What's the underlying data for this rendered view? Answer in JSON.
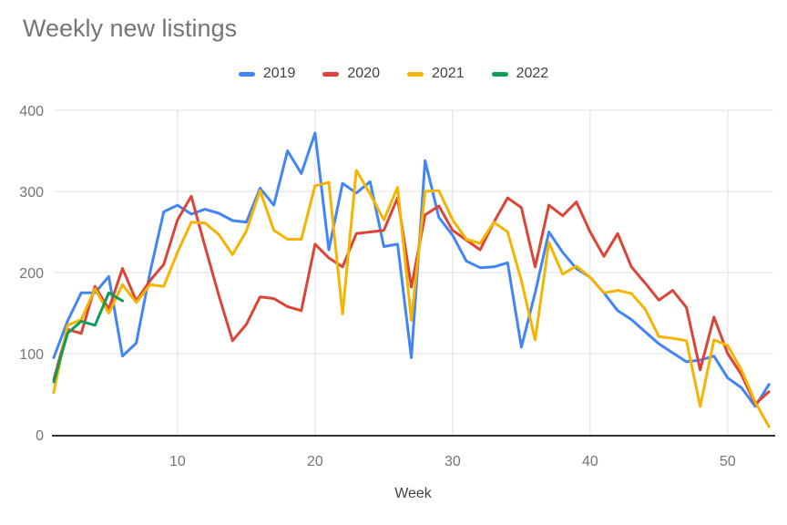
{
  "title": "Weekly new listings",
  "axis": {
    "x_label": "Week",
    "x_ticks": [
      10,
      20,
      30,
      40,
      50
    ],
    "y_ticks": [
      0,
      100,
      200,
      300,
      400
    ]
  },
  "colors": {
    "title_text": "#757575",
    "tick_text": "#757575",
    "axis_label_text": "#424242",
    "legend_text": "#424242",
    "gridline": "#e0e0e0",
    "baseline": "#333333",
    "background": "#ffffff"
  },
  "chart_data": {
    "type": "line",
    "title": "Weekly new listings",
    "xlabel": "Week",
    "ylabel": "",
    "x_range": [
      1,
      53
    ],
    "ylim": [
      0,
      400
    ],
    "grid": true,
    "legend_position": "top",
    "x": [
      1,
      2,
      3,
      4,
      5,
      6,
      7,
      8,
      9,
      10,
      11,
      12,
      13,
      14,
      15,
      16,
      17,
      18,
      19,
      20,
      21,
      22,
      23,
      24,
      25,
      26,
      27,
      28,
      29,
      30,
      31,
      32,
      33,
      34,
      35,
      36,
      37,
      38,
      39,
      40,
      41,
      42,
      43,
      44,
      45,
      46,
      47,
      48,
      49,
      50,
      51,
      52,
      53
    ],
    "series": [
      {
        "name": "2019",
        "color": "#4285f4",
        "values": [
          95,
          140,
          175,
          175,
          195,
          97,
          113,
          200,
          275,
          283,
          272,
          278,
          273,
          264,
          262,
          304,
          283,
          350,
          322,
          372,
          228,
          310,
          298,
          312,
          232,
          235,
          95,
          338,
          268,
          246,
          214,
          206,
          207,
          212,
          108,
          175,
          250,
          225,
          205,
          194,
          175,
          153,
          142,
          127,
          112,
          101,
          90,
          92,
          97,
          70,
          58,
          35,
          62
        ]
      },
      {
        "name": "2020",
        "color": "#db4437",
        "values": [
          68,
          130,
          125,
          183,
          155,
          205,
          165,
          190,
          210,
          265,
          294,
          232,
          172,
          116,
          136,
          170,
          168,
          158,
          153,
          235,
          218,
          207,
          248,
          250,
          252,
          292,
          182,
          271,
          282,
          252,
          240,
          228,
          262,
          292,
          280,
          207,
          283,
          270,
          287,
          250,
          220,
          248,
          207,
          187,
          166,
          178,
          157,
          80,
          145,
          100,
          74,
          38,
          53
        ]
      },
      {
        "name": "2021",
        "color": "#f4b400",
        "values": [
          52,
          135,
          142,
          180,
          150,
          185,
          163,
          185,
          183,
          225,
          262,
          261,
          247,
          222,
          251,
          301,
          252,
          241,
          241,
          307,
          311,
          149,
          326,
          297,
          265,
          305,
          141,
          300,
          301,
          265,
          241,
          236,
          262,
          250,
          190,
          117,
          237,
          198,
          208,
          194,
          175,
          178,
          174,
          155,
          121,
          119,
          116,
          35,
          117,
          110,
          80,
          40,
          10
        ]
      },
      {
        "name": "2022",
        "color": "#0f9d58",
        "values": [
          65,
          125,
          140,
          135,
          175,
          165
        ]
      }
    ]
  }
}
